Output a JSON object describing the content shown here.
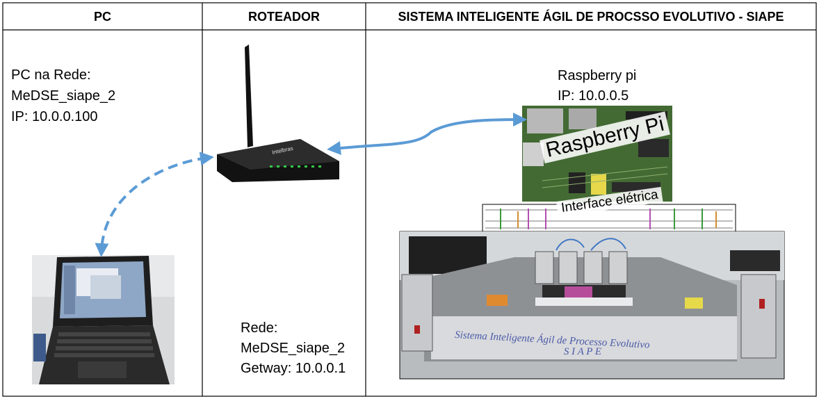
{
  "headers": {
    "pc": "PC",
    "router": "ROTEADOR",
    "system": "SISTEMA INTELIGENTE ÁGIL DE PROCSSO EVOLUTIVO - SIAPE"
  },
  "pc": {
    "line1": "PC na Rede:",
    "line2": "MeDSE_siape_2",
    "line3": "IP: 10.0.0.100"
  },
  "router": {
    "line1": "Rede:",
    "line2": "MeDSE_siape_2",
    "line3": "Getway: 10.0.0.1",
    "brand": "Intelbras"
  },
  "raspberry": {
    "line1": "Raspberry pi",
    "line2": "IP: 10.0.0.5",
    "board_label": "Raspberry Pi"
  },
  "interface": {
    "label": "Interface elétrica"
  },
  "machine": {
    "panel_text": "Sistema Inteligente Ágil de Processo Evolutivo",
    "panel_acronym": "S I A P E"
  },
  "colors": {
    "arrow": "#5b9bd5",
    "border": "#000000"
  }
}
